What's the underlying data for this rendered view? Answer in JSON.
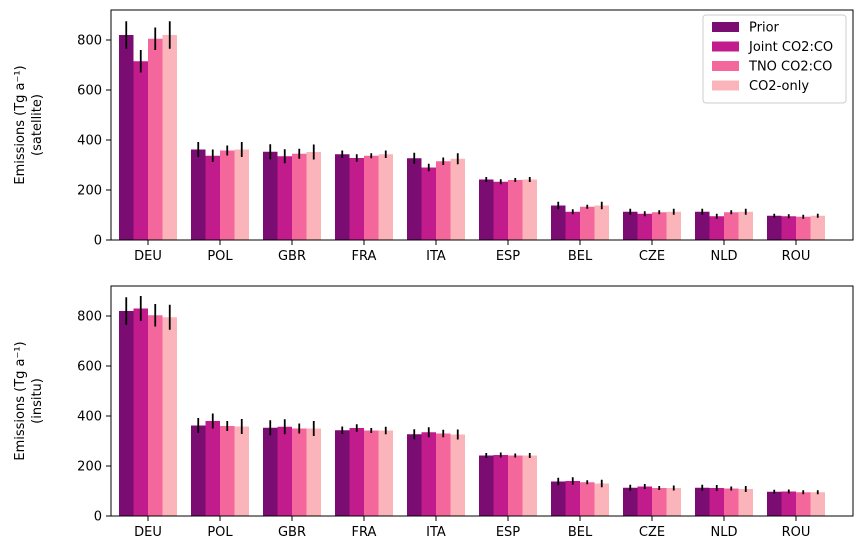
{
  "chart_data": [
    {
      "type": "bar",
      "categories": [
        "DEU",
        "POL",
        "GBR",
        "FRA",
        "ITA",
        "ESP",
        "BEL",
        "CZE",
        "NLD",
        "ROU"
      ],
      "ylabel_line1": "Emissions (Tg a⁻¹)",
      "ylabel_line2": "(satellite)",
      "ylim": [
        0,
        920
      ],
      "yticks": [
        "0",
        "200",
        "400",
        "600",
        "800"
      ],
      "legend_position": "top-right",
      "grid": false,
      "series": [
        {
          "name": "Prior",
          "color": "#7b0c72",
          "values": [
            820,
            362,
            353,
            343,
            327,
            242,
            138,
            113,
            113,
            97
          ],
          "errors": [
            55,
            30,
            30,
            15,
            22,
            10,
            15,
            12,
            12,
            8
          ]
        },
        {
          "name": "Joint CO2:CO",
          "color": "#c21c8c",
          "values": [
            715,
            337,
            335,
            328,
            290,
            233,
            113,
            105,
            95,
            95
          ],
          "errors": [
            45,
            25,
            28,
            15,
            15,
            10,
            10,
            10,
            10,
            8
          ]
        },
        {
          "name": "TNO CO2:CO",
          "color": "#f4679c",
          "values": [
            805,
            358,
            345,
            337,
            315,
            240,
            133,
            111,
            111,
            93
          ],
          "errors": [
            45,
            20,
            20,
            10,
            15,
            8,
            8,
            8,
            8,
            8
          ]
        },
        {
          "name": "CO2-only",
          "color": "#fbb4b9",
          "values": [
            820,
            362,
            352,
            343,
            325,
            242,
            138,
            113,
            113,
            97
          ],
          "errors": [
            55,
            30,
            30,
            15,
            22,
            10,
            15,
            12,
            12,
            8
          ]
        }
      ]
    },
    {
      "type": "bar",
      "categories": [
        "DEU",
        "POL",
        "GBR",
        "FRA",
        "ITA",
        "ESP",
        "BEL",
        "CZE",
        "NLD",
        "ROU"
      ],
      "ylabel_line1": "Emissions (Tg a⁻¹)",
      "ylabel_line2": "(insitu)",
      "ylim": [
        0,
        920
      ],
      "yticks": [
        "0",
        "200",
        "400",
        "600",
        "800"
      ],
      "legend_position": "",
      "grid": false,
      "series": [
        {
          "name": "Prior",
          "color": "#7b0c72",
          "values": [
            820,
            362,
            353,
            343,
            327,
            242,
            138,
            113,
            113,
            97
          ],
          "errors": [
            55,
            30,
            30,
            15,
            20,
            10,
            15,
            12,
            12,
            8
          ]
        },
        {
          "name": "Joint CO2:CO",
          "color": "#c21c8c",
          "values": [
            830,
            380,
            357,
            352,
            335,
            244,
            140,
            118,
            112,
            98
          ],
          "errors": [
            50,
            30,
            30,
            15,
            20,
            10,
            15,
            10,
            12,
            8
          ]
        },
        {
          "name": "TNO CO2:CO",
          "color": "#f4679c",
          "values": [
            803,
            360,
            350,
            342,
            330,
            242,
            135,
            112,
            110,
            95
          ],
          "errors": [
            45,
            20,
            20,
            10,
            15,
            8,
            8,
            8,
            8,
            8
          ]
        },
        {
          "name": "CO2-only",
          "color": "#fbb4b9",
          "values": [
            795,
            358,
            350,
            342,
            326,
            242,
            130,
            112,
            108,
            95
          ],
          "errors": [
            50,
            30,
            30,
            15,
            20,
            10,
            15,
            10,
            12,
            8
          ]
        }
      ]
    }
  ]
}
